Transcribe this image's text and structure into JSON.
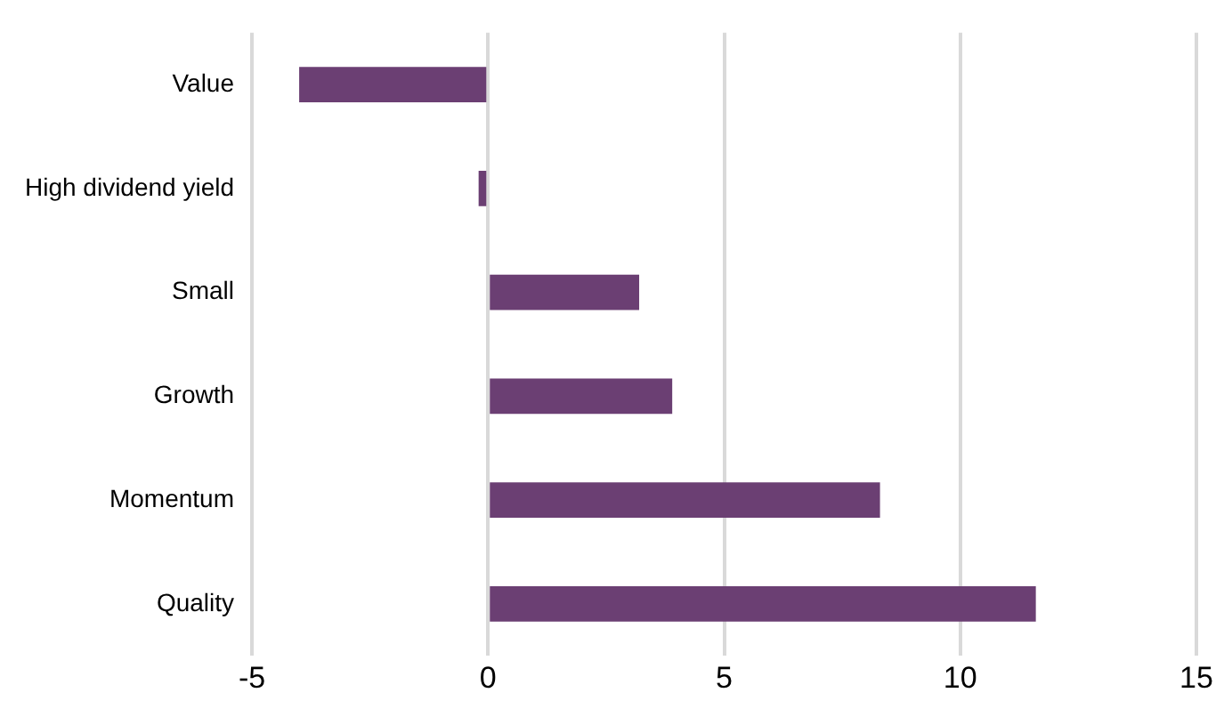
{
  "chart_data": {
    "type": "bar",
    "orientation": "horizontal",
    "categories": [
      "Value",
      "High dividend yield",
      "Small",
      "Growth",
      "Momentum",
      "Quality"
    ],
    "values": [
      -4.0,
      -0.2,
      3.2,
      3.9,
      8.3,
      11.6
    ],
    "color": "#6b3f73",
    "xlim": [
      -5,
      15
    ],
    "xticks": [
      -5,
      0,
      5,
      10,
      15
    ],
    "grid": "x",
    "legend": false
  }
}
